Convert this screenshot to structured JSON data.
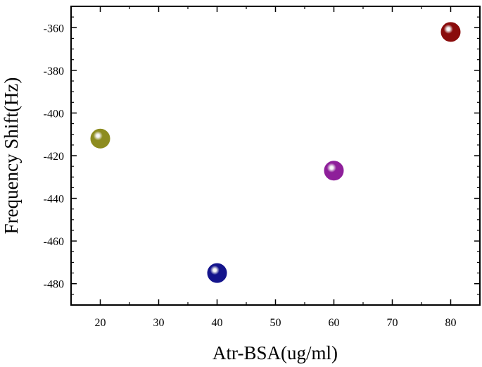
{
  "chart_data": {
    "type": "scatter",
    "title": "",
    "xlabel": "Atr-BSA(ug/ml)",
    "ylabel": "Frequency Shift(Hz)",
    "xlim": [
      15,
      85
    ],
    "ylim": [
      -490,
      -350
    ],
    "x_ticks": [
      20,
      30,
      40,
      50,
      60,
      70,
      80
    ],
    "y_ticks": [
      -360,
      -380,
      -400,
      -420,
      -440,
      -460,
      -480
    ],
    "grid": false,
    "legend": "none",
    "points": [
      {
        "x": 20,
        "y": -412,
        "color": "#8d8c1f"
      },
      {
        "x": 40,
        "y": -475,
        "color": "#14148c"
      },
      {
        "x": 60,
        "y": -427,
        "color": "#8e1f9a"
      },
      {
        "x": 80,
        "y": -362,
        "color": "#8a0c0c"
      }
    ]
  }
}
